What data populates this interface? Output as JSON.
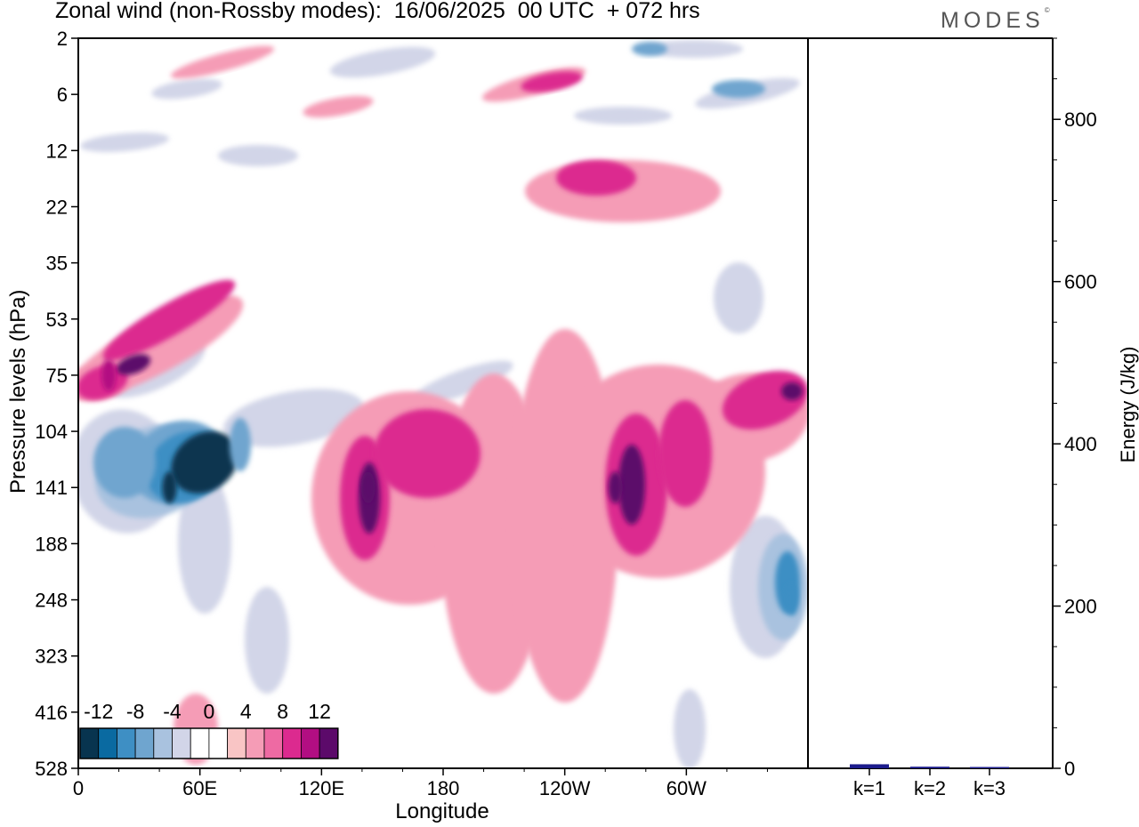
{
  "chart_data": [
    {
      "type": "heatmap",
      "title": "Zonal wind (non-Rossby modes):  16/06/2025  00 UTC  + 072 hrs",
      "xlabel": "Longitude",
      "ylabel": "Pressure levels (hPa)",
      "x_ticks": [
        "0",
        "60E",
        "120E",
        "180",
        "120W",
        "60W"
      ],
      "y_ticks": [
        "2",
        "6",
        "12",
        "22",
        "35",
        "53",
        "75",
        "104",
        "141",
        "188",
        "248",
        "323",
        "416",
        "528"
      ],
      "colorbar": {
        "labels": [
          "-12",
          "-8",
          "-4",
          "0",
          "4",
          "8",
          "12"
        ],
        "colors": [
          "#08344f",
          "#0a6aa1",
          "#3e8fc4",
          "#6fa5cf",
          "#a9c2df",
          "#d2d5e8",
          "#ffffff",
          "#ffffff",
          "#f9c5c5",
          "#f59cb6",
          "#ee6aa3",
          "#dc2a8f",
          "#b20e82",
          "#5c0a6a"
        ]
      },
      "features": [
        {
          "label": "negative jet",
          "value": -13,
          "lon": 45,
          "level": "141"
        },
        {
          "label": "positive jet",
          "value": 12,
          "lon": 143,
          "level": "141"
        },
        {
          "label": "positive jet",
          "value": 12,
          "lon": 265,
          "level": "141"
        },
        {
          "label": "negative jet",
          "value": -10,
          "lon": 352,
          "level": "248"
        },
        {
          "label": "positive band",
          "value": 10,
          "lon": 15,
          "level": "75"
        }
      ]
    },
    {
      "type": "bar",
      "ylabel": "Energy (J/kg)",
      "ylim": [
        0,
        900
      ],
      "y_ticks": [
        "0",
        "200",
        "400",
        "600",
        "800"
      ],
      "categories": [
        "k=1",
        "k=2",
        "k=3"
      ],
      "values": [
        5,
        2,
        1
      ],
      "bar_color": "#1c1c8c"
    }
  ],
  "brand": "MODES",
  "brand_mark": "©"
}
